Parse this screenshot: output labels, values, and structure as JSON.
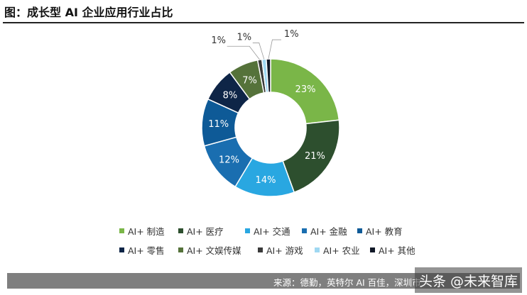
{
  "title": "图：成长型 AI 企业应用行业占比",
  "source": "来源：德勤，英特尔 AI 百佳，深圳市",
  "watermark": "头条 @未来智库",
  "chart_data": {
    "type": "pie",
    "donut": true,
    "categories": [
      "AI+ 制造",
      "AI+ 医疗",
      "AI+ 交通",
      "AI+ 金融",
      "AI+ 教育",
      "AI+ 零售",
      "AI+ 文娱传媒",
      "AI+ 游戏",
      "AI+ 农业",
      "AI+ 其他"
    ],
    "values": [
      23,
      21,
      14,
      12,
      11,
      8,
      7,
      1,
      1,
      1
    ],
    "labels": [
      "23%",
      "21%",
      "14%",
      "12%",
      "11%",
      "8%",
      "7%",
      "1%",
      "1%",
      "1%"
    ],
    "colors": [
      "#7ab648",
      "#2d4f2e",
      "#29a7e1",
      "#1a6eb0",
      "#0e5a97",
      "#0e2547",
      "#55723a",
      "#3a3a3a",
      "#9fd8f2",
      "#111827"
    ],
    "legend_position": "bottom"
  }
}
